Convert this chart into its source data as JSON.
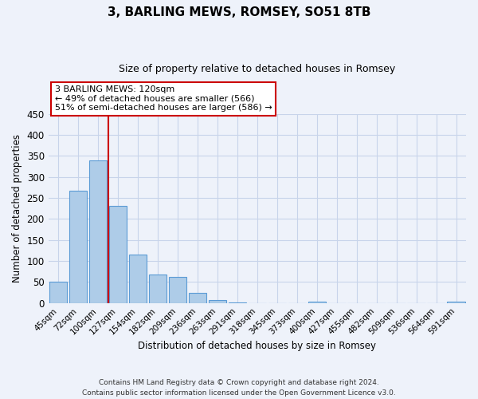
{
  "title": "3, BARLING MEWS, ROMSEY, SO51 8TB",
  "subtitle": "Size of property relative to detached houses in Romsey",
  "xlabel": "Distribution of detached houses by size in Romsey",
  "ylabel": "Number of detached properties",
  "bar_labels": [
    "45sqm",
    "72sqm",
    "100sqm",
    "127sqm",
    "154sqm",
    "182sqm",
    "209sqm",
    "236sqm",
    "263sqm",
    "291sqm",
    "318sqm",
    "345sqm",
    "373sqm",
    "400sqm",
    "427sqm",
    "455sqm",
    "482sqm",
    "509sqm",
    "536sqm",
    "564sqm",
    "591sqm"
  ],
  "bar_heights": [
    50,
    267,
    340,
    232,
    115,
    68,
    62,
    25,
    7,
    2,
    0,
    0,
    0,
    3,
    0,
    0,
    0,
    0,
    0,
    0,
    3
  ],
  "bar_color": "#aecce8",
  "bar_edge_color": "#5b9bd5",
  "background_color": "#eef2fa",
  "grid_color": "#c8d4ea",
  "property_line_color": "#cc0000",
  "annotation_title": "3 BARLING MEWS: 120sqm",
  "annotation_line1": "← 49% of detached houses are smaller (566)",
  "annotation_line2": "51% of semi-detached houses are larger (586) →",
  "annotation_box_color": "#cc0000",
  "ylim": [
    0,
    450
  ],
  "yticks": [
    0,
    50,
    100,
    150,
    200,
    250,
    300,
    350,
    400,
    450
  ],
  "footer1": "Contains HM Land Registry data © Crown copyright and database right 2024.",
  "footer2": "Contains public sector information licensed under the Open Government Licence v3.0."
}
